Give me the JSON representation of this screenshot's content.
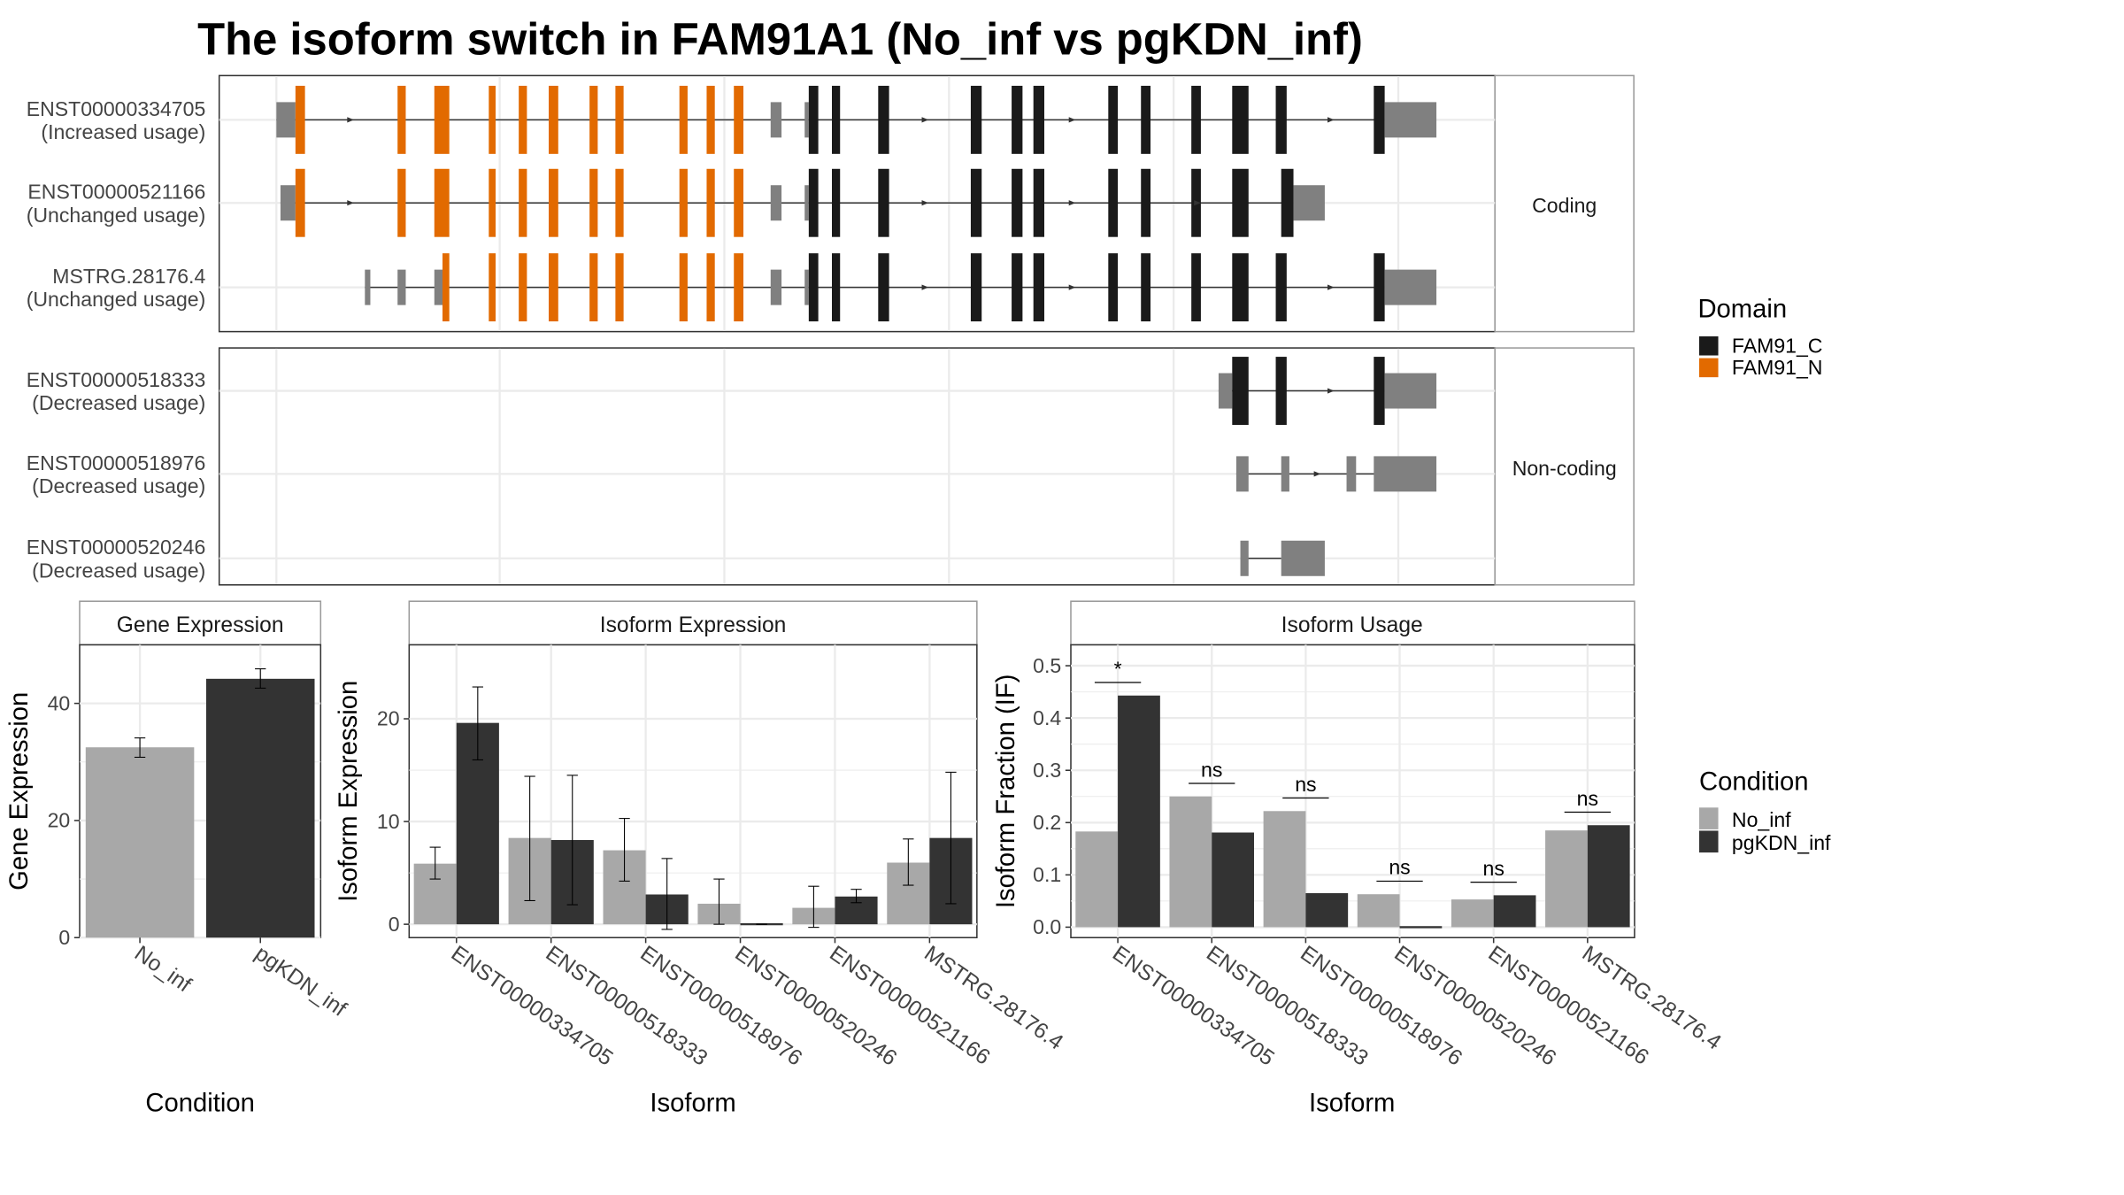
{
  "title": "The isoform switch in FAM91A1 (No_inf vs pgKDN_inf)",
  "colors": {
    "domain_c": "#1a1a1a",
    "domain_n": "#e26a00",
    "utr": "#808080",
    "no_inf": "#a8a8a8",
    "pgkdn_inf": "#333333",
    "panel_border": "#333333",
    "strip_border": "#9a9a9a",
    "grid": "#ebebeb"
  },
  "structure": {
    "facets": [
      "Coding",
      "Non-coding"
    ],
    "domain_legend": {
      "title": "Domain",
      "items": [
        {
          "label": "FAM91_C",
          "color_key": "domain_c"
        },
        {
          "label": "FAM91_N",
          "color_key": "domain_n"
        }
      ]
    },
    "transcripts": [
      {
        "facet": "Coding",
        "id": "ENST00000334705",
        "usage": "(Increased usage)",
        "line": [
          203,
          1010
        ],
        "features": [
          [
            203,
            217,
            "utr"
          ],
          [
            217,
            224,
            "n"
          ],
          [
            292,
            298,
            "n"
          ],
          [
            319,
            330,
            "n"
          ],
          [
            359,
            364,
            "n"
          ],
          [
            381,
            387,
            "n"
          ],
          [
            403,
            410,
            "n"
          ],
          [
            433,
            439,
            "n"
          ],
          [
            452,
            458,
            "n"
          ],
          [
            499,
            505,
            "n"
          ],
          [
            519,
            525,
            "n"
          ],
          [
            539,
            546,
            "n"
          ],
          [
            566,
            574,
            "utr"
          ],
          [
            591,
            594,
            "utr"
          ],
          [
            594,
            601,
            "c"
          ],
          [
            611,
            617,
            "c"
          ],
          [
            645,
            653,
            "c"
          ],
          [
            713,
            721,
            "c"
          ],
          [
            743,
            751,
            "c"
          ],
          [
            759,
            767,
            "c"
          ],
          [
            814,
            821,
            "c"
          ],
          [
            838,
            845,
            "c"
          ],
          [
            875,
            882,
            "c"
          ],
          [
            905,
            917,
            "c"
          ],
          [
            937,
            945,
            "c"
          ],
          [
            1009,
            1017,
            "c"
          ],
          [
            1017,
            1055,
            "utr"
          ]
        ],
        "arrows": [
          258,
          680,
          788,
          978
        ]
      },
      {
        "facet": "Coding",
        "id": "ENST00000521166",
        "usage": "(Unchanged usage)",
        "line": [
          206,
          950
        ],
        "features": [
          [
            206,
            217,
            "utr"
          ],
          [
            217,
            224,
            "n"
          ],
          [
            292,
            298,
            "n"
          ],
          [
            319,
            330,
            "n"
          ],
          [
            359,
            364,
            "n"
          ],
          [
            381,
            387,
            "n"
          ],
          [
            403,
            410,
            "n"
          ],
          [
            433,
            439,
            "n"
          ],
          [
            452,
            458,
            "n"
          ],
          [
            499,
            505,
            "n"
          ],
          [
            519,
            525,
            "n"
          ],
          [
            539,
            546,
            "n"
          ],
          [
            566,
            574,
            "utr"
          ],
          [
            591,
            594,
            "utr"
          ],
          [
            594,
            601,
            "c"
          ],
          [
            611,
            617,
            "c"
          ],
          [
            645,
            653,
            "c"
          ],
          [
            713,
            721,
            "c"
          ],
          [
            743,
            751,
            "c"
          ],
          [
            759,
            767,
            "c"
          ],
          [
            814,
            821,
            "c"
          ],
          [
            838,
            845,
            "c"
          ],
          [
            875,
            882,
            "c"
          ],
          [
            905,
            917,
            "c"
          ],
          [
            941,
            950,
            "c"
          ],
          [
            950,
            973,
            "utr"
          ]
        ],
        "arrows": [
          258,
          680,
          788,
          880
        ]
      },
      {
        "facet": "Coding",
        "id": "MSTRG.28176.4",
        "usage": "(Unchanged usage)",
        "line": [
          268,
          1010
        ],
        "features": [
          [
            268,
            272,
            "utr"
          ],
          [
            292,
            298,
            "utr"
          ],
          [
            319,
            325,
            "utr"
          ],
          [
            325,
            330,
            "n"
          ],
          [
            359,
            364,
            "n"
          ],
          [
            381,
            387,
            "n"
          ],
          [
            403,
            410,
            "n"
          ],
          [
            433,
            439,
            "n"
          ],
          [
            452,
            458,
            "n"
          ],
          [
            499,
            505,
            "n"
          ],
          [
            519,
            525,
            "n"
          ],
          [
            539,
            546,
            "n"
          ],
          [
            566,
            574,
            "utr"
          ],
          [
            591,
            594,
            "utr"
          ],
          [
            594,
            601,
            "c"
          ],
          [
            611,
            617,
            "c"
          ],
          [
            645,
            653,
            "c"
          ],
          [
            713,
            721,
            "c"
          ],
          [
            743,
            751,
            "c"
          ],
          [
            759,
            767,
            "c"
          ],
          [
            814,
            821,
            "c"
          ],
          [
            838,
            845,
            "c"
          ],
          [
            875,
            882,
            "c"
          ],
          [
            905,
            917,
            "c"
          ],
          [
            937,
            945,
            "c"
          ],
          [
            1009,
            1017,
            "c"
          ],
          [
            1017,
            1055,
            "utr"
          ]
        ],
        "arrows": [
          680,
          788,
          978
        ]
      },
      {
        "facet": "Non-coding",
        "id": "ENST00000518333",
        "usage": "(Decreased usage)",
        "line": [
          895,
          1010
        ],
        "features": [
          [
            895,
            905,
            "utr"
          ],
          [
            905,
            917,
            "c"
          ],
          [
            937,
            945,
            "c"
          ],
          [
            1009,
            1017,
            "c"
          ],
          [
            1017,
            1055,
            "utr"
          ]
        ],
        "arrows": [
          978
        ]
      },
      {
        "facet": "Non-coding",
        "id": "ENST00000518976",
        "usage": "(Decreased usage)",
        "line": [
          908,
          1010
        ],
        "features": [
          [
            908,
            917,
            "utr"
          ],
          [
            941,
            947,
            "utr"
          ],
          [
            989,
            996,
            "utr"
          ],
          [
            1009,
            1055,
            "utr"
          ]
        ],
        "arrows": [
          968
        ]
      },
      {
        "facet": "Non-coding",
        "id": "ENST00000520246",
        "usage": "(Decreased usage)",
        "line": [
          911,
          941
        ],
        "features": [
          [
            911,
            917,
            "utr"
          ],
          [
            941,
            973,
            "utr"
          ]
        ],
        "arrows": []
      }
    ]
  },
  "chart_data": [
    {
      "type": "bar",
      "panel": "Gene Expression",
      "xlabel": "Condition",
      "ylabel": "Gene Expression",
      "categories": [
        "No_inf",
        "pgKDN_inf"
      ],
      "values": [
        32.5,
        44.2
      ],
      "error": [
        [
          30.8,
          34.1
        ],
        [
          42.6,
          45.9
        ]
      ],
      "ylim": [
        0,
        50
      ],
      "yticks": [
        0,
        20,
        40
      ]
    },
    {
      "type": "bar",
      "panel": "Isoform Expression",
      "xlabel": "Isoform",
      "ylabel": "Isoform Expression",
      "categories": [
        "ENST00000334705",
        "ENST00000518333",
        "ENST00000518976",
        "ENST00000520246",
        "ENST00000521166",
        "MSTRG.28176.4"
      ],
      "series": [
        {
          "name": "No_inf",
          "values": [
            5.9,
            8.4,
            7.2,
            2.0,
            1.6,
            6.0
          ],
          "error": [
            [
              4.4,
              7.5
            ],
            [
              2.3,
              14.4
            ],
            [
              4.2,
              10.3
            ],
            [
              0.0,
              4.4
            ],
            [
              -0.3,
              3.7
            ],
            [
              3.8,
              8.3
            ]
          ]
        },
        {
          "name": "pgKDN_inf",
          "values": [
            19.6,
            8.2,
            2.9,
            0.0,
            2.7,
            8.4
          ],
          "error": [
            [
              16.0,
              23.1
            ],
            [
              1.9,
              14.5
            ],
            [
              -0.5,
              6.4
            ],
            [
              0.0,
              0.0
            ],
            [
              2.1,
              3.4
            ],
            [
              2.0,
              14.8
            ]
          ]
        }
      ],
      "ylim": [
        -1.3,
        27.2
      ],
      "yticks": [
        0,
        10,
        20
      ]
    },
    {
      "type": "bar",
      "panel": "Isoform Usage",
      "xlabel": "Isoform",
      "ylabel": "Isoform Fraction (IF)",
      "categories": [
        "ENST00000334705",
        "ENST00000518333",
        "ENST00000518976",
        "ENST00000520246",
        "ENST00000521166",
        "MSTRG.28176.4"
      ],
      "series": [
        {
          "name": "No_inf",
          "values": [
            0.183,
            0.25,
            0.222,
            0.063,
            0.053,
            0.185
          ]
        },
        {
          "name": "pgKDN_inf",
          "values": [
            0.443,
            0.181,
            0.065,
            0.0,
            0.061,
            0.195
          ]
        }
      ],
      "significance": [
        "*",
        "ns",
        "ns",
        "ns",
        "ns",
        "ns"
      ],
      "ylim": [
        -0.02,
        0.54
      ],
      "yticks": [
        0.0,
        0.1,
        0.2,
        0.3,
        0.4,
        0.5
      ],
      "legend": {
        "title": "Condition",
        "items": [
          "No_inf",
          "pgKDN_inf"
        ],
        "position": "right"
      }
    }
  ]
}
